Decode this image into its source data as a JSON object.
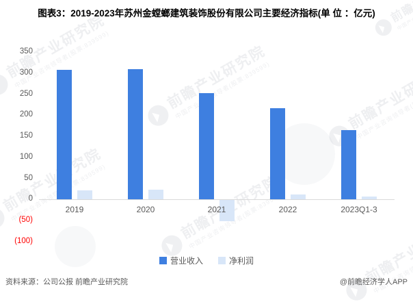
{
  "title": "图表3：2019-2023年苏州金螳螂建筑装饰股份有限公司主要经济指标(单 位 ：亿元)",
  "chart_data": {
    "type": "bar",
    "title": "图表3：2019-2023年苏州金螳螂建筑装饰股份有限公司主要经济指标(单 位 ：亿元)",
    "unit": "亿元",
    "categories": [
      "2019",
      "2020",
      "2021",
      "2022",
      "2023Q1-3"
    ],
    "series": [
      {
        "name": "营业收入",
        "color": "#3e7fe0",
        "values": [
          308,
          310,
          252,
          216,
          164
        ]
      },
      {
        "name": "净利润",
        "color": "#d8e6f8",
        "values": [
          22,
          23,
          -49,
          12,
          7
        ]
      }
    ],
    "ylim": [
      -100,
      350
    ],
    "yticks": [
      {
        "value": 350,
        "label": "350"
      },
      {
        "value": 300,
        "label": "300"
      },
      {
        "value": 250,
        "label": "250"
      },
      {
        "value": 200,
        "label": "200"
      },
      {
        "value": 150,
        "label": "150"
      },
      {
        "value": 100,
        "label": "100"
      },
      {
        "value": 50,
        "label": "50"
      },
      {
        "value": 0,
        "label": "0"
      },
      {
        "value": -50,
        "label": "(50)"
      },
      {
        "value": -100,
        "label": "(100)"
      }
    ],
    "negative_tick_color": "#ff0000",
    "tick_color": "#595959",
    "grid": false,
    "legend_position": "bottom"
  },
  "footer": {
    "source": "资料来源：公司公报 前瞻产业研究院",
    "credit": "@前瞻经济学人APP"
  },
  "watermark": {
    "brand": "前瞻产业研究院",
    "tagline": "中国产业咨询领导者(股票:839599)"
  }
}
